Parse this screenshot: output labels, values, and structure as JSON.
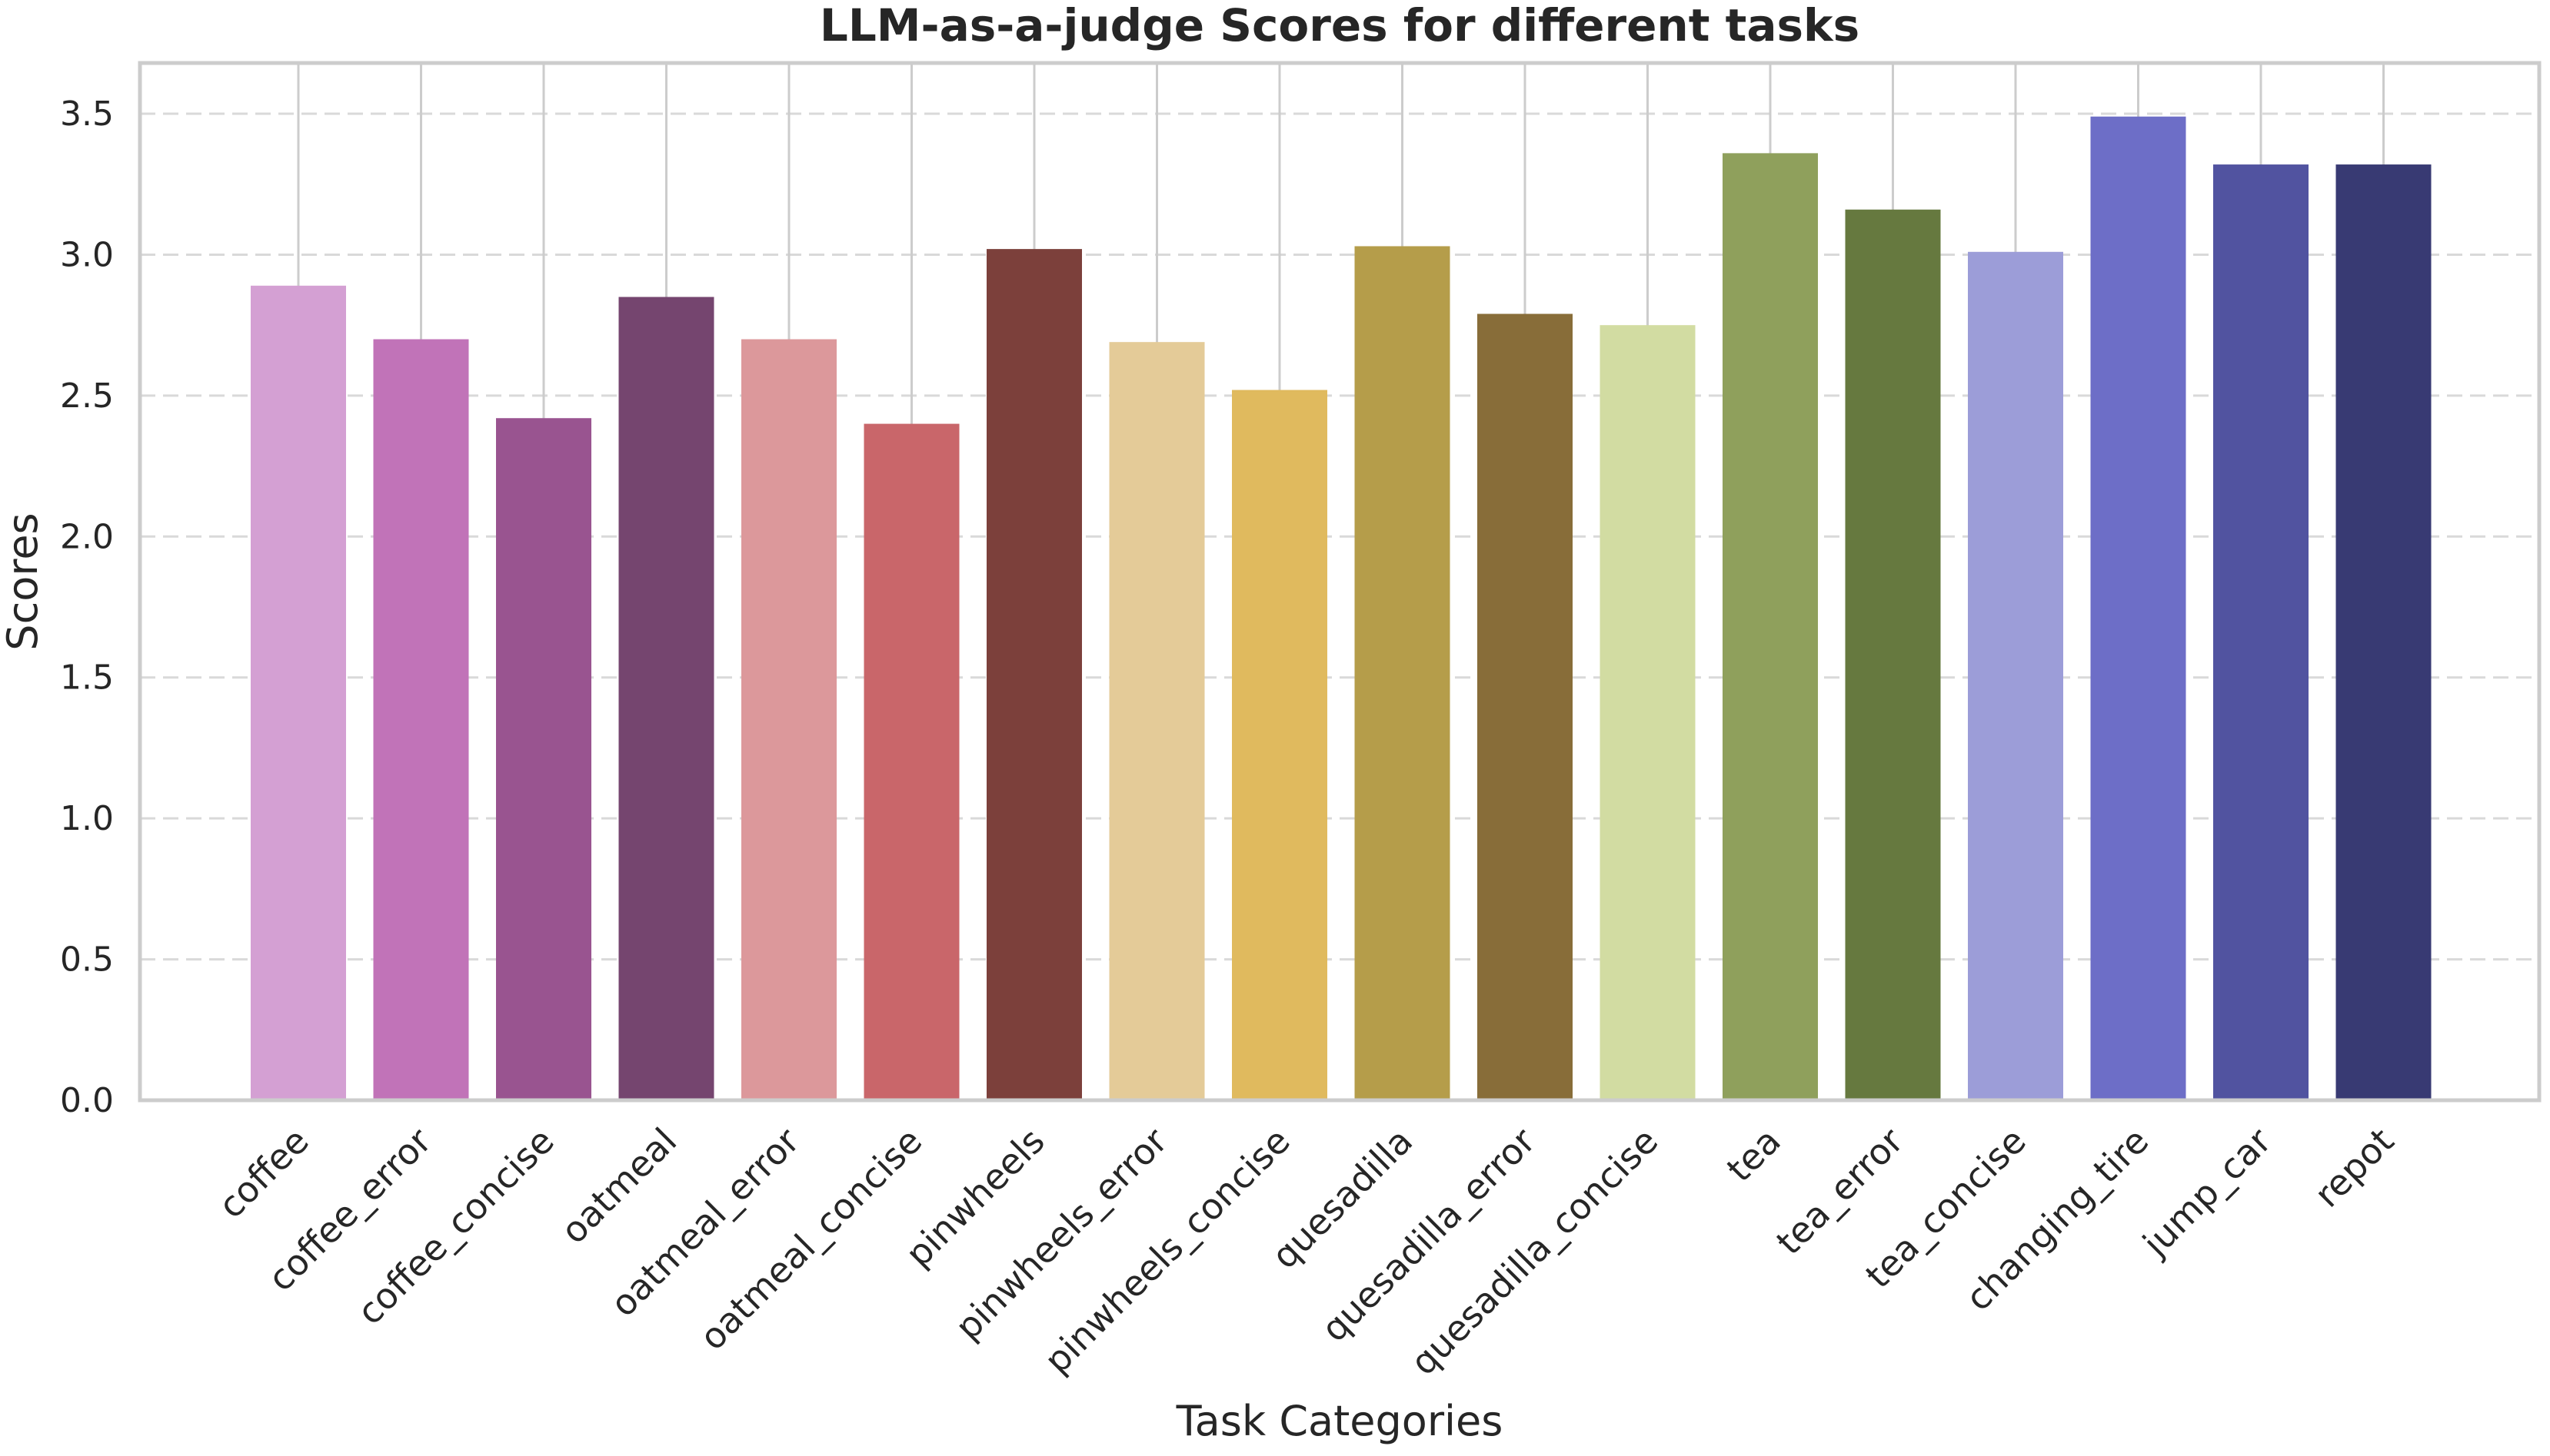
{
  "chart_data": {
    "type": "bar",
    "title": "LLM-as-a-judge Scores for different tasks",
    "xlabel": "Task Categories",
    "ylabel": "Scores",
    "ylim": [
      0,
      3.68
    ],
    "yticks": [
      0.0,
      0.5,
      1.0,
      1.5,
      2.0,
      2.5,
      3.0,
      3.5
    ],
    "ytick_labels": [
      "0.0",
      "0.5",
      "1.0",
      "1.5",
      "2.0",
      "2.5",
      "3.0",
      "3.5"
    ],
    "grid": {
      "horizontal": true,
      "vertical": true
    },
    "categories": [
      "coffee",
      "coffee_error",
      "coffee_concise",
      "oatmeal",
      "oatmeal_error",
      "oatmeal_concise",
      "pinwheels",
      "pinwheels_error",
      "pinwheels_concise",
      "quesadilla",
      "quesadilla_error",
      "quesadilla_concise",
      "tea",
      "tea_error",
      "tea_concise",
      "changing_tire",
      "jump_car",
      "repot"
    ],
    "values": [
      2.89,
      2.7,
      2.42,
      2.85,
      2.7,
      2.4,
      3.02,
      2.69,
      2.52,
      3.03,
      2.79,
      2.75,
      3.36,
      3.16,
      3.01,
      3.49,
      3.32,
      3.32
    ],
    "colors": [
      "#d4a0d3",
      "#c173b8",
      "#995490",
      "#75456f",
      "#dc989b",
      "#c9666a",
      "#7c403b",
      "#e4cb98",
      "#e0ba5e",
      "#b59d4a",
      "#886d39",
      "#d2dca2",
      "#8fa05c",
      "#66793f",
      "#9c9dd8",
      "#6d6ec7",
      "#5153a0",
      "#383a73"
    ]
  }
}
